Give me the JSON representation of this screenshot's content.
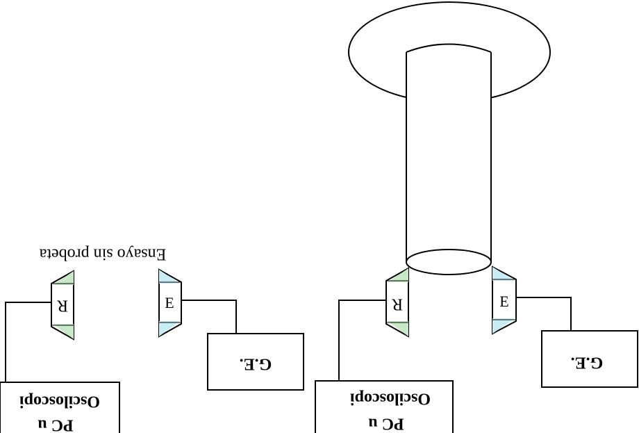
{
  "caption": "Ensayo sin probeta",
  "left_setup": {
    "receiver_label": "R",
    "emitter_label": "E",
    "generator_label": "G.E.",
    "scope_label_line1": "Osciloscopi",
    "scope_label_line2": "PC u"
  },
  "right_setup": {
    "receiver_label": "R",
    "emitter_label": "E",
    "generator_label": "G.E.",
    "scope_label_line1": "Osciloscopi",
    "scope_label_line2": "PC u"
  },
  "colors": {
    "receiver_fill": "#c8e8c8",
    "emitter_fill": "#c8ecf4",
    "stroke": "#000000"
  }
}
